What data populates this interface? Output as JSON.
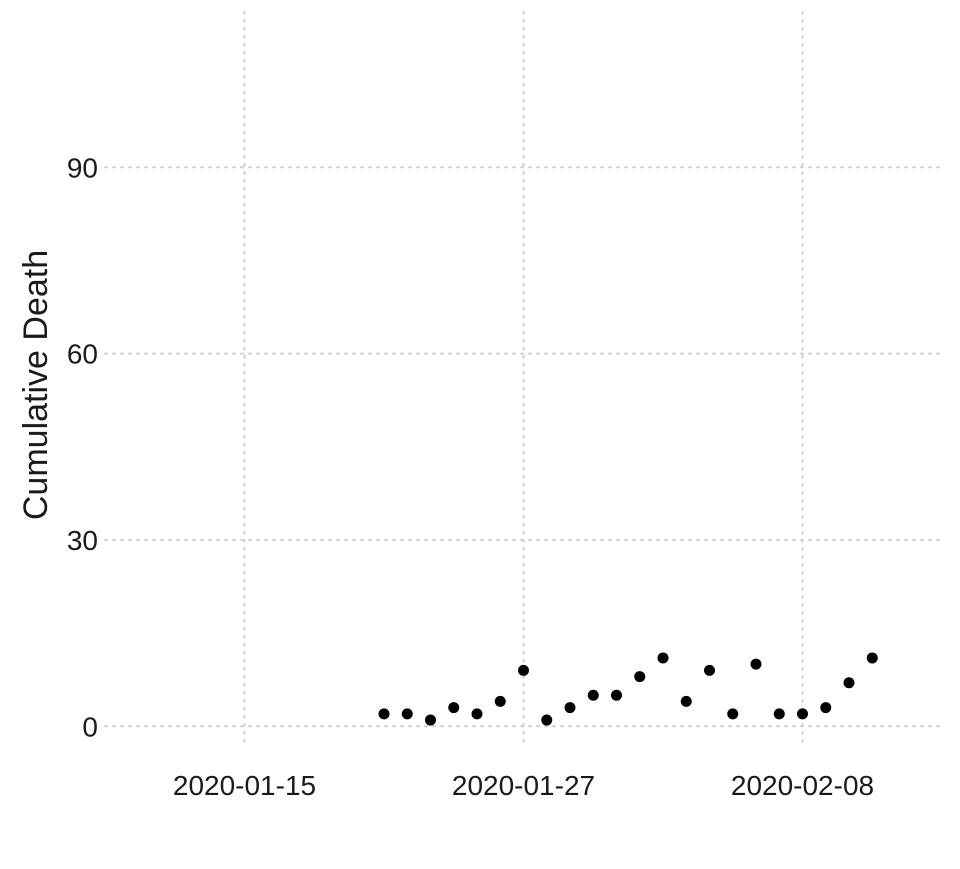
{
  "chart_data": {
    "type": "scatter",
    "title": "",
    "xlabel": "",
    "ylabel": "Cumulative Death",
    "x_axis_type": "date",
    "xlim": [
      "2020-01-09",
      "2020-02-14"
    ],
    "ylim": [
      -3.5,
      115
    ],
    "x_ticks": [
      "2020-01-15",
      "2020-01-27",
      "2020-02-08"
    ],
    "y_ticks": [
      0,
      30,
      60,
      90
    ],
    "grid": "major, dotted",
    "legend": "none",
    "point_color": "#000000",
    "points": [
      {
        "x": "2020-01-21",
        "y": 2
      },
      {
        "x": "2020-01-22",
        "y": 2
      },
      {
        "x": "2020-01-23",
        "y": 1
      },
      {
        "x": "2020-01-24",
        "y": 3
      },
      {
        "x": "2020-01-25",
        "y": 2
      },
      {
        "x": "2020-01-26",
        "y": 4
      },
      {
        "x": "2020-01-27",
        "y": 9
      },
      {
        "x": "2020-01-28",
        "y": 1
      },
      {
        "x": "2020-01-29",
        "y": 3
      },
      {
        "x": "2020-01-30",
        "y": 5
      },
      {
        "x": "2020-01-31",
        "y": 5
      },
      {
        "x": "2020-02-01",
        "y": 8
      },
      {
        "x": "2020-02-02",
        "y": 11
      },
      {
        "x": "2020-02-03",
        "y": 4
      },
      {
        "x": "2020-02-04",
        "y": 9
      },
      {
        "x": "2020-02-05",
        "y": 2
      },
      {
        "x": "2020-02-06",
        "y": 10
      },
      {
        "x": "2020-02-07",
        "y": 2
      },
      {
        "x": "2020-02-08",
        "y": 2
      },
      {
        "x": "2020-02-09",
        "y": 3
      },
      {
        "x": "2020-02-10",
        "y": 7
      },
      {
        "x": "2020-02-11",
        "y": 11
      }
    ]
  }
}
